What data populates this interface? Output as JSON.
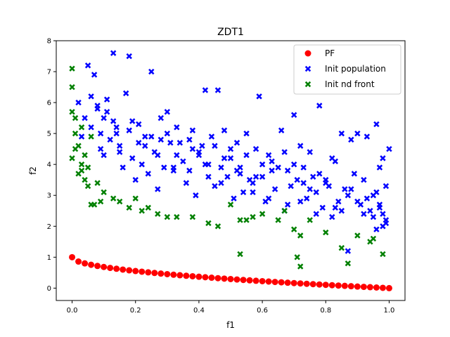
{
  "chart_data": {
    "type": "scatter",
    "title": "ZDT1",
    "xlabel": "f1",
    "ylabel": "f2",
    "xlim": [
      -0.05,
      1.05
    ],
    "ylim": [
      -0.4,
      8.0
    ],
    "xticks": [
      "0.0",
      "0.2",
      "0.4",
      "0.6",
      "0.8",
      "1.0"
    ],
    "yticks": [
      "0",
      "1",
      "2",
      "3",
      "4",
      "5",
      "6",
      "7",
      "8"
    ],
    "grid": false,
    "legend_position": "top-right",
    "series": [
      {
        "name": "PF",
        "marker": "circle",
        "color": "#ff0000",
        "x": [
          0.0,
          0.02,
          0.04,
          0.06,
          0.08,
          0.1,
          0.12,
          0.14,
          0.16,
          0.18,
          0.2,
          0.22,
          0.24,
          0.26,
          0.28,
          0.3,
          0.32,
          0.34,
          0.36,
          0.38,
          0.4,
          0.42,
          0.44,
          0.46,
          0.48,
          0.5,
          0.52,
          0.54,
          0.56,
          0.58,
          0.6,
          0.62,
          0.64,
          0.66,
          0.68,
          0.7,
          0.72,
          0.74,
          0.76,
          0.78,
          0.8,
          0.82,
          0.84,
          0.86,
          0.88,
          0.9,
          0.92,
          0.94,
          0.96,
          0.98,
          1.0
        ],
        "y": [
          1.0,
          0.859,
          0.8,
          0.755,
          0.717,
          0.684,
          0.654,
          0.626,
          0.6,
          0.576,
          0.553,
          0.531,
          0.51,
          0.49,
          0.471,
          0.452,
          0.434,
          0.417,
          0.4,
          0.384,
          0.368,
          0.352,
          0.337,
          0.322,
          0.307,
          0.293,
          0.279,
          0.265,
          0.252,
          0.238,
          0.225,
          0.213,
          0.2,
          0.188,
          0.175,
          0.163,
          0.151,
          0.14,
          0.128,
          0.117,
          0.106,
          0.094,
          0.083,
          0.073,
          0.062,
          0.051,
          0.041,
          0.03,
          0.02,
          0.01,
          0.0
        ]
      },
      {
        "name": "Init population",
        "marker": "x-filled",
        "color": "#0000ff",
        "x": [
          0.13,
          0.18,
          0.05,
          0.07,
          0.25,
          0.46,
          0.42,
          0.59,
          0.3,
          0.11,
          0.17,
          0.02,
          0.08,
          0.1,
          0.14,
          0.21,
          0.23,
          0.28,
          0.33,
          0.38,
          0.41,
          0.44,
          0.48,
          0.52,
          0.55,
          0.58,
          0.62,
          0.66,
          0.7,
          0.72,
          0.75,
          0.78,
          0.82,
          0.85,
          0.88,
          0.9,
          0.93,
          0.96,
          0.98,
          1.0,
          0.04,
          0.06,
          0.09,
          0.12,
          0.15,
          0.19,
          0.22,
          0.26,
          0.29,
          0.31,
          0.35,
          0.37,
          0.4,
          0.43,
          0.47,
          0.5,
          0.53,
          0.56,
          0.6,
          0.63,
          0.67,
          0.69,
          0.73,
          0.76,
          0.8,
          0.83,
          0.86,
          0.89,
          0.92,
          0.95,
          0.97,
          0.99,
          0.03,
          0.1,
          0.16,
          0.2,
          0.24,
          0.27,
          0.32,
          0.36,
          0.39,
          0.45,
          0.49,
          0.51,
          0.54,
          0.57,
          0.61,
          0.64,
          0.68,
          0.71,
          0.74,
          0.77,
          0.79,
          0.81,
          0.84,
          0.87,
          0.91,
          0.94,
          0.96,
          0.98,
          0.08,
          0.13,
          0.18,
          0.23,
          0.28,
          0.33,
          0.38,
          0.43,
          0.48,
          0.53,
          0.58,
          0.63,
          0.68,
          0.73,
          0.78,
          0.83,
          0.88,
          0.93,
          0.97,
          0.99,
          0.06,
          0.11,
          0.14,
          0.19,
          0.25,
          0.3,
          0.34,
          0.4,
          0.45,
          0.5,
          0.55,
          0.6,
          0.65,
          0.7,
          0.75,
          0.8,
          0.85,
          0.9,
          0.95,
          0.97,
          0.09,
          0.15,
          0.21,
          0.27,
          0.32,
          0.37,
          0.42,
          0.47,
          0.52,
          0.57,
          0.62,
          0.67,
          0.72,
          0.77,
          0.82,
          0.87,
          0.92,
          0.96,
          0.99,
          0.98
        ],
        "y": [
          7.6,
          7.5,
          7.2,
          6.9,
          7.0,
          6.4,
          6.4,
          6.2,
          5.7,
          6.1,
          6.3,
          6.0,
          5.9,
          5.5,
          5.0,
          5.3,
          4.9,
          5.5,
          5.2,
          5.1,
          4.6,
          4.9,
          5.1,
          4.7,
          5.0,
          4.5,
          4.3,
          5.1,
          5.6,
          4.6,
          4.4,
          5.9,
          4.2,
          5.0,
          4.8,
          5.0,
          4.9,
          5.3,
          4.2,
          4.5,
          5.5,
          5.2,
          4.5,
          4.8,
          4.6,
          4.2,
          4.0,
          4.4,
          3.9,
          4.7,
          4.1,
          3.8,
          4.3,
          3.6,
          3.9,
          4.2,
          3.7,
          3.5,
          4.0,
          3.8,
          4.4,
          3.3,
          3.9,
          3.6,
          3.4,
          4.1,
          3.2,
          3.7,
          3.5,
          3.0,
          3.9,
          3.3,
          4.9,
          4.3,
          3.9,
          3.5,
          3.7,
          3.2,
          3.8,
          3.4,
          3.0,
          3.3,
          3.6,
          2.9,
          3.1,
          3.4,
          2.8,
          3.2,
          2.7,
          3.5,
          2.9,
          3.1,
          2.6,
          3.3,
          2.8,
          3.0,
          2.7,
          2.5,
          3.1,
          2.4,
          5.8,
          5.4,
          5.1,
          4.6,
          4.8,
          4.3,
          4.5,
          4.0,
          4.2,
          3.9,
          3.6,
          4.1,
          3.8,
          3.4,
          3.7,
          2.6,
          3.2,
          2.9,
          2.6,
          2.2,
          6.2,
          5.7,
          5.2,
          5.4,
          4.9,
          5.0,
          4.7,
          4.4,
          4.6,
          4.5,
          4.3,
          3.6,
          3.9,
          4.0,
          3.2,
          3.5,
          2.5,
          2.8,
          2.3,
          2.7,
          5.0,
          4.4,
          4.7,
          4.3,
          3.9,
          4.8,
          4.0,
          3.4,
          3.8,
          3.1,
          2.9,
          2.5,
          2.8,
          2.4,
          2.3,
          1.2,
          2.4,
          1.9,
          2.1,
          2.0
        ]
      },
      {
        "name": "Init nd front",
        "marker": "x-filled",
        "color": "#008000",
        "x": [
          0.0,
          0.0,
          0.0,
          0.01,
          0.01,
          0.0,
          0.01,
          0.02,
          0.03,
          0.02,
          0.04,
          0.03,
          0.05,
          0.06,
          0.07,
          0.09,
          0.1,
          0.13,
          0.15,
          0.18,
          0.2,
          0.22,
          0.24,
          0.27,
          0.3,
          0.33,
          0.38,
          0.43,
          0.46,
          0.5,
          0.53,
          0.57,
          0.6,
          0.65,
          0.67,
          0.7,
          0.72,
          0.75,
          0.8,
          0.85,
          0.87,
          0.9,
          0.94,
          0.95,
          0.98,
          0.71,
          0.72,
          0.55,
          0.53,
          0.03,
          0.04,
          0.06,
          0.08,
          0.05
        ],
        "y": [
          7.1,
          6.5,
          5.7,
          5.5,
          5.0,
          4.2,
          4.5,
          4.6,
          4.0,
          3.7,
          3.5,
          3.8,
          3.3,
          2.7,
          2.7,
          2.8,
          3.1,
          2.9,
          2.8,
          2.6,
          2.9,
          2.5,
          2.6,
          2.4,
          2.3,
          2.3,
          2.3,
          2.1,
          2.0,
          2.7,
          2.2,
          2.3,
          2.4,
          2.2,
          2.5,
          1.9,
          1.7,
          2.2,
          1.8,
          1.3,
          0.8,
          1.7,
          1.5,
          1.6,
          1.1,
          1.0,
          0.7,
          2.2,
          1.1,
          5.2,
          4.3,
          4.9,
          3.4,
          3.9
        ]
      }
    ]
  }
}
